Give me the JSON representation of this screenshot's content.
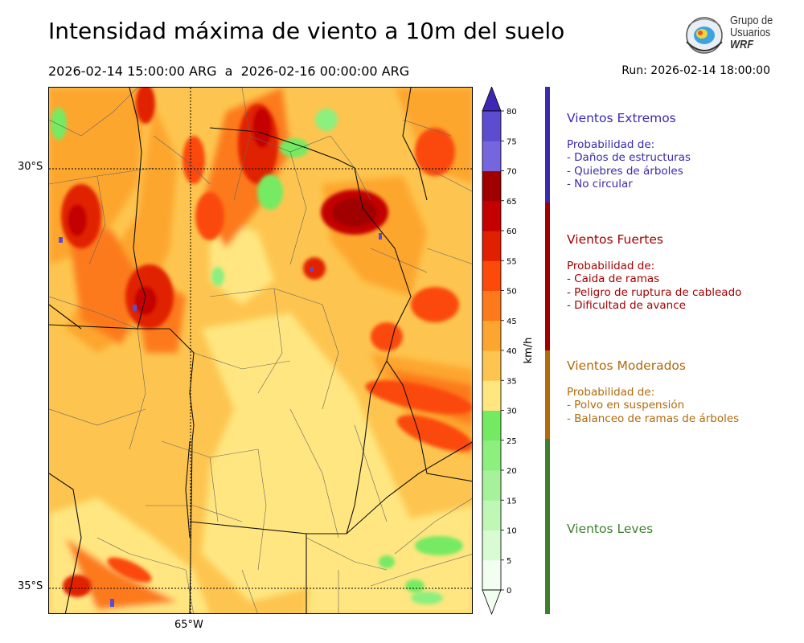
{
  "title": "Intensidad máxima de viento a 10m del suelo",
  "subtitle": "2026-02-14 15:00:00 ARG  a  2026-02-16 00:00:00 ARG",
  "run": "Run: 2026-02-14 18:00:00",
  "logo": {
    "line1": "Grupo de",
    "line2": "Usuarios",
    "line3": "WRF"
  },
  "map": {
    "lat_labels": [
      "30°S",
      "35°S"
    ],
    "lon_labels": [
      "65°W"
    ]
  },
  "colorbar": {
    "unit": "km/h",
    "ticks": [
      "0",
      "5",
      "10",
      "15",
      "20",
      "25",
      "30",
      "35",
      "40",
      "45",
      "50",
      "55",
      "60",
      "65",
      "70",
      "75",
      "80"
    ],
    "colors": [
      "#f2fff0",
      "#d9fbd3",
      "#c0f7b6",
      "#a6f29a",
      "#8cef7e",
      "#74ea62",
      "#ffe680",
      "#fdc54f",
      "#fda62f",
      "#fc7a1a",
      "#fb4a0a",
      "#e12000",
      "#c40000",
      "#a00000",
      "#7666de",
      "#5c4dd0",
      "#4433c0"
    ],
    "extend_color": "#3e27b4"
  },
  "categories": [
    {
      "title": "Vientos Extremos",
      "color": "#3a2aad",
      "lines": [
        "Probabilidad de:",
        "- Daños de estructuras",
        "- Quiebres de árboles",
        "- No circular"
      ]
    },
    {
      "title": "Vientos Fuertes",
      "color": "#a20000",
      "lines": [
        "Probabilidad de:",
        "- Caida de ramas",
        "- Peligro de ruptura de cableado",
        "- Dificultad de avance"
      ]
    },
    {
      "title": "Vientos Moderados",
      "color": "#b26a0a",
      "lines": [
        "Probabilidad de:",
        "- Polvo en suspensión",
        "- Balanceo de ramas de árboles"
      ]
    },
    {
      "title": "Vientos Leves",
      "color": "#3d7f2f",
      "lines": []
    }
  ]
}
